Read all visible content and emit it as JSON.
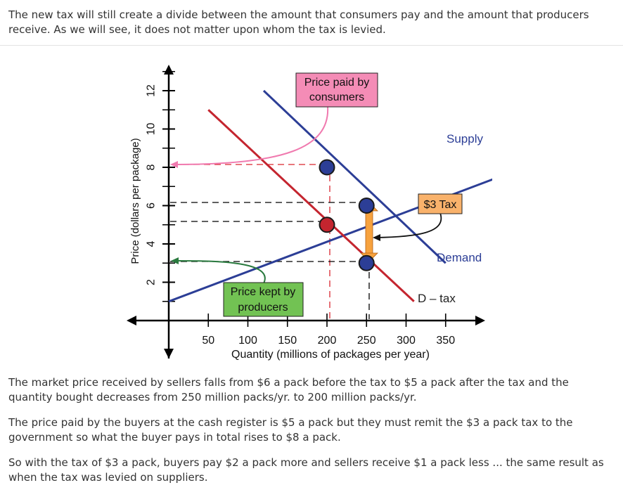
{
  "intro": "The new tax will still create a divide between the amount that consumers pay and the amount that producers receive. As we will see, it does not matter upon whom the tax is levied.",
  "figure": {
    "y_axis_label": "Price (dollars per package)",
    "x_axis_label": "Quantity (millions of packages per year)",
    "y_ticks": [
      "2",
      "4",
      "6",
      "8",
      "10",
      "12"
    ],
    "x_ticks": [
      "50",
      "100",
      "150",
      "200",
      "250",
      "300",
      "350"
    ],
    "labels": {
      "supply": "Supply",
      "demand": "Demand",
      "d_tax": "D – tax",
      "tax": "$3 Tax",
      "consumers_line1": "Price paid by",
      "consumers_line2": "consumers",
      "producers_line1": "Price kept by",
      "producers_line2": "producers"
    },
    "colors": {
      "supply": "#2c3e96",
      "demand": "#2c3e96",
      "d_tax": "#c4252f",
      "consumers_box": "#f48cb6",
      "producers_box": "#72c253",
      "tax_box": "#f9b26b",
      "tax_arrow": "#f7a23e"
    },
    "points": {
      "supply": [
        {
          "q": 0,
          "p": 1
        },
        {
          "q": 450,
          "p": 8
        }
      ],
      "demand": [
        {
          "q": 120,
          "p": 12
        },
        {
          "q": 350,
          "p": 3
        }
      ],
      "d_tax": [
        {
          "q": 50,
          "p": 11
        },
        {
          "q": 310,
          "p": 1
        }
      ],
      "markers": [
        {
          "q": 200,
          "p": 8,
          "color": "#2c3e96"
        },
        {
          "q": 250,
          "p": 6,
          "color": "#2c3e96"
        },
        {
          "q": 200,
          "p": 5,
          "color": "#c4252f"
        },
        {
          "q": 250,
          "p": 3,
          "color": "#2c3e96"
        }
      ]
    }
  },
  "paragraphs": [
    "The market price received by sellers falls from $6 a pack before the tax to $5 a pack after the tax and the quantity bought decreases from 250 million packs/yr. to 200 million packs/yr.",
    "The price paid by the buyers at the cash register is $5 a pack but they must remit the $3 a pack tax to the government so what the buyer pays in total rises to $8 a pack.",
    "So with the tax of $3 a pack, buyers pay $2 a pack more and sellers receive $1 a pack less ... the same result as when the tax was levied on suppliers."
  ]
}
